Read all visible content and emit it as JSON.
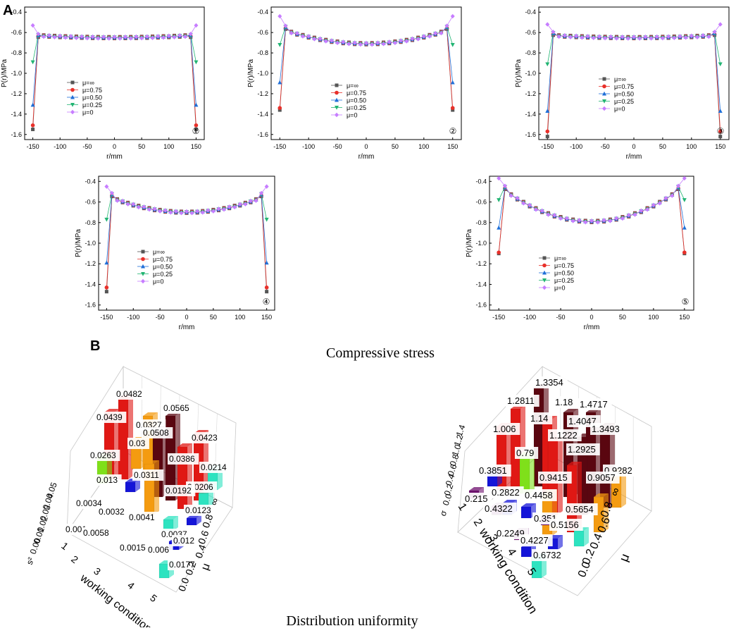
{
  "panel_a_label": "A",
  "panel_b_label": "B",
  "caption_a": "Compressive stress",
  "caption_b": "Distribution uniformity",
  "legend_labels": [
    "μ=∞",
    "μ=0.75",
    "μ=0.50",
    "μ=0.25",
    "μ=0"
  ],
  "series_colors": [
    "#555555",
    "#e8302a",
    "#1f6fd8",
    "#22b573",
    "#c77dff"
  ],
  "line_charts_common": {
    "xlabel": "r/mm",
    "ylabel": "P(r)/MPa",
    "xticks": [
      -150,
      -100,
      -50,
      0,
      50,
      100,
      150
    ],
    "yticks": [
      -0.4,
      -0.6,
      -0.8,
      -1.0,
      -1.2,
      -1.4,
      -1.6
    ],
    "ytick_labels": [
      "-0.4",
      "-0.6",
      "-0.8",
      "-1.0",
      "-1.2",
      "-1.4",
      "-1.6"
    ],
    "xlim": [
      -165,
      165
    ],
    "ylim": [
      -1.65,
      -0.35
    ]
  },
  "chart_data": [
    {
      "type": "line",
      "id": "1",
      "marker": "①",
      "r_inner": 140,
      "center": -0.65,
      "curv": 0.02,
      "peak_inner": -0.63,
      "edge": [
        -1.55,
        -1.51,
        -1.31,
        -0.89,
        -0.53
      ]
    },
    {
      "type": "line",
      "id": "2",
      "marker": "②",
      "r_inner": 140,
      "center": -0.71,
      "curv": 0.13,
      "peak_inner": -0.55,
      "edge": [
        -1.36,
        -1.34,
        -1.09,
        -0.72,
        -0.44
      ]
    },
    {
      "type": "line",
      "id": "3",
      "marker": "③",
      "r_inner": 140,
      "center": -0.65,
      "curv": 0.02,
      "peak_inner": -0.61,
      "edge": [
        -1.62,
        -1.57,
        -1.37,
        -0.91,
        -0.52
      ]
    },
    {
      "type": "line",
      "id": "4",
      "marker": "④",
      "r_inner": 140,
      "center": -0.7,
      "curv": 0.14,
      "peak_inner": -0.53,
      "edge": [
        -1.47,
        -1.43,
        -1.19,
        -0.77,
        -0.45
      ]
    },
    {
      "type": "line",
      "id": "5",
      "marker": "⑤",
      "r_inner": 140,
      "center": -0.79,
      "curv": 0.3,
      "peak_inner": -0.46,
      "edge": [
        -1.1,
        -1.09,
        -0.85,
        -0.58,
        -0.37
      ]
    },
    {
      "type": "bar3d",
      "id": "uniformity-left",
      "xlabel": "working condition",
      "ylabel": "μ",
      "zlabel": "s²",
      "x_ticks": [
        "1",
        "2",
        "3",
        "4",
        "5"
      ],
      "y_ticks": [
        "0.0",
        "0.2",
        "0.4",
        "0.6",
        "0.8",
        "∞"
      ],
      "z_ticks": [
        "0.00",
        "0.01",
        "0.02",
        "0.03",
        "0.04",
        "0.05"
      ],
      "labels": [
        "0.0482",
        "0.0565",
        "0.0439",
        "0.0327",
        "0.0508",
        "0.0423",
        "0.03",
        "0.0263",
        "0.0386",
        "0.0214",
        "0.0311",
        "0.013",
        "0.0206",
        "0.0192",
        "0.0034",
        "0.0123",
        "0.0032",
        "0.0041",
        "0.001",
        "0.0058",
        "0.0037",
        "0.012",
        "0.0015",
        "0.006",
        "0.0177"
      ]
    },
    {
      "type": "bar3d",
      "id": "uniformity-right",
      "xlabel": "working condition",
      "ylabel": "μ",
      "zlabel": "σ",
      "x_ticks": [
        "1",
        "2",
        "3",
        "4",
        "5"
      ],
      "y_ticks": [
        "0.0",
        "0.2",
        "0.4",
        "0.6",
        "0.8",
        "∞"
      ],
      "z_ticks": [
        "0.0",
        "0.2",
        "0.4",
        "0.6",
        "0.8",
        "1.0",
        "1.2",
        "1.4"
      ],
      "labels": [
        "1.3354",
        "1.2811",
        "1.18",
        "1.4717",
        "1.14",
        "1.4047",
        "1.006",
        "1.3493",
        "1.1222",
        "0.79",
        "1.2925",
        "0.9282",
        "0.3851",
        "0.9415",
        "0.9057",
        "0.2822",
        "0.215",
        "0.4458",
        "0.4322",
        "0.5654",
        "0.351",
        "0.5156",
        "0.2249",
        "0.4227",
        "0.6732"
      ]
    }
  ]
}
